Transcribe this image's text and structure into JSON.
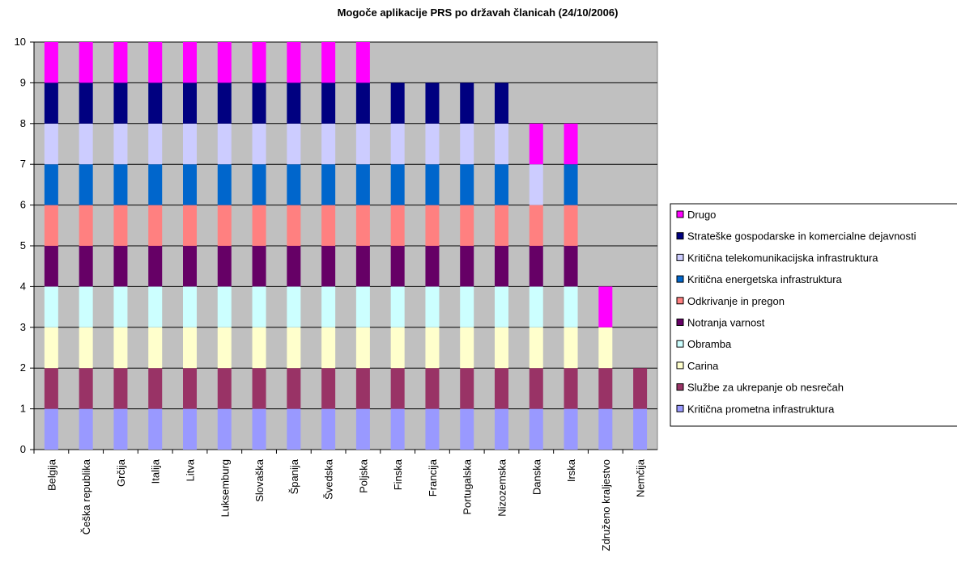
{
  "chart_data": {
    "type": "stacked_bar",
    "title": "Mogoče aplikacije PRS po državah članicah (24/10/2006)",
    "categories": [
      "Belgija",
      "Češka republika",
      "Grčija",
      "Italija",
      "Litva",
      "Luksemburg",
      "Slovaška",
      "Španija",
      "Švedska",
      "Poljska",
      "Finska",
      "Francija",
      "Portugalska",
      "Nizozemska",
      "Danska",
      "Irska",
      "Združeno kraljestvo",
      "Nemčija"
    ],
    "series": [
      {
        "name": "Kritična prometna infrastruktura",
        "color": "#9999ff",
        "values": [
          1,
          1,
          1,
          1,
          1,
          1,
          1,
          1,
          1,
          1,
          1,
          1,
          1,
          1,
          1,
          1,
          1,
          1
        ]
      },
      {
        "name": "Službe za ukrepanje ob nesrečah",
        "color": "#993366",
        "values": [
          1,
          1,
          1,
          1,
          1,
          1,
          1,
          1,
          1,
          1,
          1,
          1,
          1,
          1,
          1,
          1,
          1,
          1
        ]
      },
      {
        "name": "Carina",
        "color": "#ffffcc",
        "values": [
          1,
          1,
          1,
          1,
          1,
          1,
          1,
          1,
          1,
          1,
          1,
          1,
          1,
          1,
          1,
          1,
          1,
          0
        ]
      },
      {
        "name": "Obramba",
        "color": "#ccffff",
        "values": [
          1,
          1,
          1,
          1,
          1,
          1,
          1,
          1,
          1,
          1,
          1,
          1,
          1,
          1,
          1,
          1,
          0,
          0
        ]
      },
      {
        "name": "Notranja varnost",
        "color": "#660066",
        "values": [
          1,
          1,
          1,
          1,
          1,
          1,
          1,
          1,
          1,
          1,
          1,
          1,
          1,
          1,
          1,
          1,
          0,
          0
        ]
      },
      {
        "name": "Odkrivanje in pregon",
        "color": "#ff8080",
        "values": [
          1,
          1,
          1,
          1,
          1,
          1,
          1,
          1,
          1,
          1,
          1,
          1,
          1,
          1,
          1,
          1,
          0,
          0
        ]
      },
      {
        "name": "Kritična energetska infrastruktura",
        "color": "#0066cc",
        "values": [
          1,
          1,
          1,
          1,
          1,
          1,
          1,
          1,
          1,
          1,
          1,
          1,
          1,
          1,
          0,
          1,
          0,
          0
        ]
      },
      {
        "name": "Kritična telekomunikacijska infrastruktura",
        "color": "#ccccff",
        "values": [
          1,
          1,
          1,
          1,
          1,
          1,
          1,
          1,
          1,
          1,
          1,
          1,
          1,
          1,
          1,
          0,
          0,
          0
        ]
      },
      {
        "name": "Strateške gospodarske in komercialne dejavnosti",
        "color": "#000080",
        "values": [
          1,
          1,
          1,
          1,
          1,
          1,
          1,
          1,
          1,
          1,
          1,
          1,
          1,
          1,
          0,
          0,
          0,
          0
        ]
      },
      {
        "name": "Drugo",
        "color": "#ff00ff",
        "values": [
          1,
          1,
          1,
          1,
          1,
          1,
          1,
          1,
          1,
          1,
          0,
          0,
          0,
          0,
          1,
          1,
          1,
          0
        ]
      }
    ],
    "ylim": [
      0,
      10
    ],
    "yticks": [
      0,
      1,
      2,
      3,
      4,
      5,
      6,
      7,
      8,
      9,
      10
    ],
    "grid": true,
    "legend": "right"
  }
}
